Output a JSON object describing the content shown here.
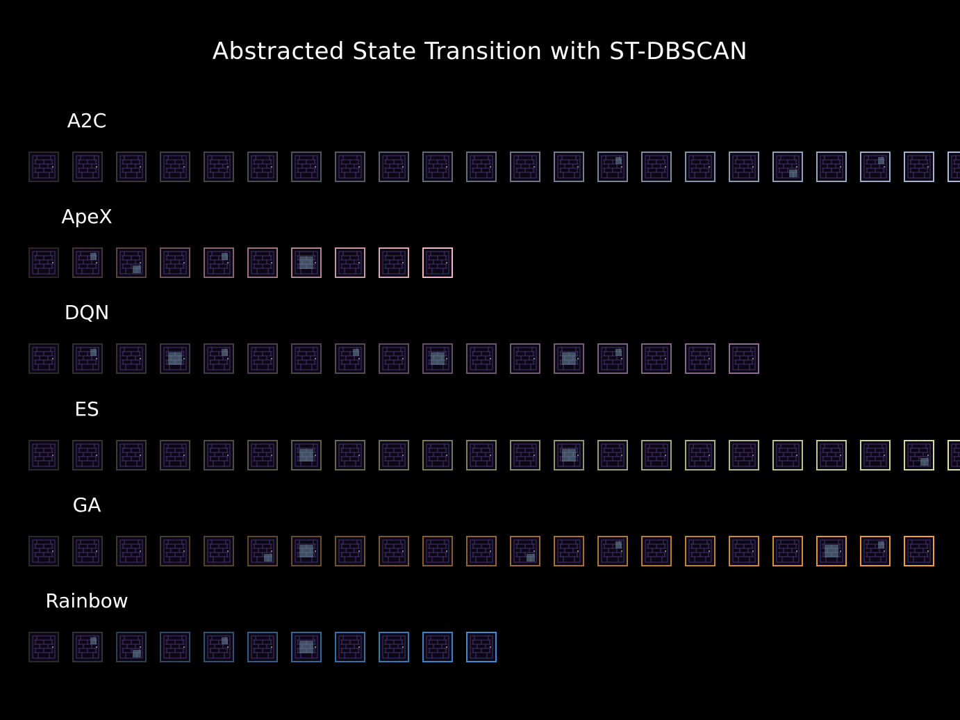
{
  "title": "Abstracted State Transition with ST-DBSCAN",
  "frame_icon": "pacman-maze-frame",
  "rows": [
    {
      "label": "A2C",
      "start_color": "#2a2a2a",
      "end_color": "#a9bdd9",
      "count": 22,
      "highlights": [
        13,
        17,
        19
      ]
    },
    {
      "label": "ApeX",
      "start_color": "#2e2222",
      "end_color": "#f2b8c0",
      "count": 10,
      "highlights": [
        1,
        2,
        4,
        6
      ]
    },
    {
      "label": "DQN",
      "start_color": "#2a2a2a",
      "end_color": "#8a6e8c",
      "count": 17,
      "highlights": [
        1,
        3,
        4,
        7,
        9,
        12,
        13
      ]
    },
    {
      "label": "ES",
      "start_color": "#2a2a2a",
      "end_color": "#d9e89a",
      "count": 22,
      "highlights": [
        6,
        12,
        20
      ]
    },
    {
      "label": "GA",
      "start_color": "#2a2a2a",
      "end_color": "#f5a030",
      "count": 21,
      "highlights": [
        5,
        6,
        11,
        13,
        18,
        19
      ]
    },
    {
      "label": "Rainbow",
      "start_color": "#2a2a2a",
      "end_color": "#3a8fd8",
      "count": 11,
      "highlights": [
        1,
        2,
        4,
        6
      ]
    }
  ]
}
